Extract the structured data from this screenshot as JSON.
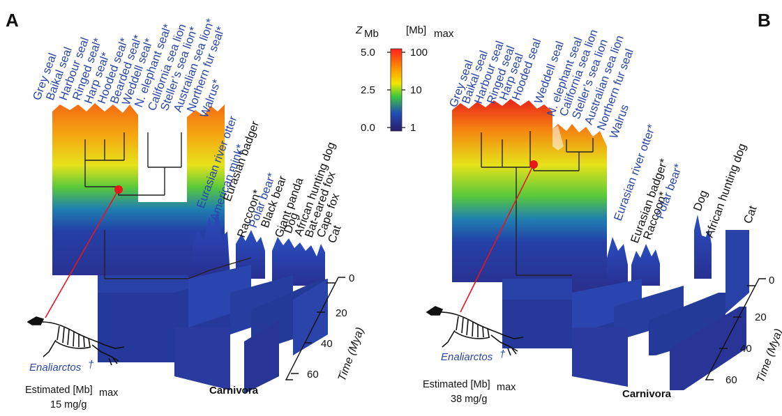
{
  "panel_a": {
    "letter": "A",
    "labels": [
      {
        "text": "Grey seal",
        "color": "#2846a8"
      },
      {
        "text": "Baikal seal",
        "color": "#2846a8"
      },
      {
        "text": "Harbour seal",
        "color": "#2846a8"
      },
      {
        "text": "Ringed seal*",
        "color": "#2846a8"
      },
      {
        "text": "Harp seal*",
        "color": "#2846a8"
      },
      {
        "text": "Hooded seal*",
        "color": "#2846a8"
      },
      {
        "text": "Bearded seal*",
        "color": "#2846a8"
      },
      {
        "text": "Weddell seal*",
        "color": "#2846a8"
      },
      {
        "text": "N. elephant seal*",
        "color": "#2846a8"
      },
      {
        "text": "California sea lion",
        "color": "#2846a8"
      },
      {
        "text": "Steller’s sea lion*",
        "color": "#2846a8"
      },
      {
        "text": "Australian sea lion*",
        "color": "#2846a8"
      },
      {
        "text": "Northern fur seal*",
        "color": "#2846a8"
      },
      {
        "text": "Walrus*",
        "color": "#2846a8"
      },
      {
        "text": "Eurasian river otter",
        "color": "#2846a8"
      },
      {
        "text": "American mink*",
        "color": "#2846a8"
      },
      {
        "text": "Eurasian badger",
        "color": "#111111"
      },
      {
        "text": "Raccoon*",
        "color": "#111111"
      },
      {
        "text": "Polar bear*",
        "color": "#2846a8"
      },
      {
        "text": "Black bear",
        "color": "#111111"
      },
      {
        "text": "Giant panda",
        "color": "#111111"
      },
      {
        "text": "Dog",
        "color": "#111111"
      },
      {
        "text": "African hunting dog",
        "color": "#111111"
      },
      {
        "text": "Bat-eared fox",
        "color": "#111111"
      },
      {
        "text": "Cape fox",
        "color": "#111111"
      },
      {
        "text": "Cat",
        "color": "#111111"
      }
    ],
    "fossil_name": "Enaliarctos",
    "fossil_mark": "†",
    "estimate_line1": "Estimated [Mb]",
    "estimate_sub": "max",
    "estimate_value": "15 mg/g",
    "clade": "Carnivora",
    "time_ticks": [
      "0",
      "20",
      "40",
      "60"
    ],
    "time_label": "Time (Mya)"
  },
  "panel_b": {
    "letter": "B",
    "labels": [
      {
        "text": "Grey seal",
        "color": "#2846a8"
      },
      {
        "text": "Baikal seal",
        "color": "#2846a8"
      },
      {
        "text": "Harbour seal",
        "color": "#2846a8"
      },
      {
        "text": "Ringed seal",
        "color": "#2846a8"
      },
      {
        "text": "Harp seal",
        "color": "#2846a8"
      },
      {
        "text": "Hooded seal",
        "color": "#2846a8"
      },
      {
        "text": "Weddell seal",
        "color": "#2846a8"
      },
      {
        "text": "N. elephant seal",
        "color": "#2846a8"
      },
      {
        "text": "California sea lion",
        "color": "#2846a8"
      },
      {
        "text": "Steller’s sea lion",
        "color": "#2846a8"
      },
      {
        "text": "Australian sea lion",
        "color": "#2846a8"
      },
      {
        "text": "Northern fur seal",
        "color": "#2846a8"
      },
      {
        "text": "Walrus",
        "color": "#2846a8"
      },
      {
        "text": "Eurasian river otter*",
        "color": "#2846a8"
      },
      {
        "text": "Eurasian badger*",
        "color": "#111111"
      },
      {
        "text": "Raccoon*",
        "color": "#111111"
      },
      {
        "text": "Polar bear*",
        "color": "#2846a8"
      },
      {
        "text": "Dog",
        "color": "#111111"
      },
      {
        "text": "African hunting dog",
        "color": "#111111"
      },
      {
        "text": "Cat",
        "color": "#111111"
      }
    ],
    "fossil_name": "Enaliarctos",
    "fossil_mark": "†",
    "estimate_line1": "Estimated [Mb]",
    "estimate_sub": "max",
    "estimate_value": "38 mg/g",
    "clade": "Carnivora",
    "time_ticks": [
      "0",
      "20",
      "40",
      "60"
    ],
    "time_label": "Time (Mya)"
  },
  "colorbar": {
    "z_label": "Z",
    "z_sub": "Mb",
    "mb_label": "[Mb]",
    "mb_sub": "max",
    "left_ticks": [
      "5.0",
      "2.5",
      "0.0"
    ],
    "right_ticks": [
      "100",
      "10",
      "1"
    ],
    "gradient": [
      "#ff1f1f",
      "#ff8a00",
      "#f2e600",
      "#3cc83c",
      "#1f4fb3",
      "#2a1a6b"
    ]
  },
  "colors": {
    "label_blue": "#2846a8",
    "ancestor_dot": "#e8151b",
    "ancestor_line": "#e8151b",
    "base_blue": "#233a9c"
  }
}
